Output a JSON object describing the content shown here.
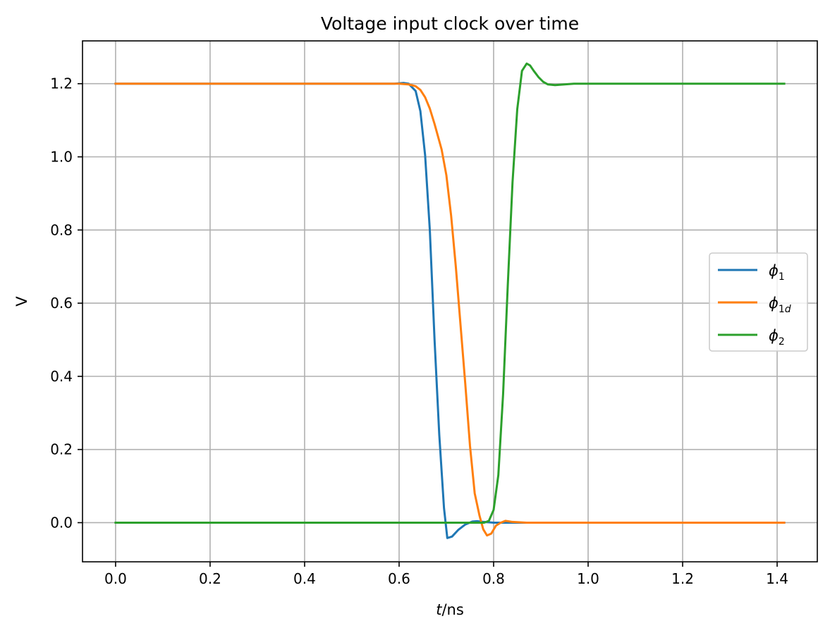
{
  "chart_data": {
    "type": "line",
    "title": "Voltage input clock over time",
    "xlabel_italic": "t",
    "xlabel_rest": "/ns",
    "ylabel": "V",
    "xlim": [
      -0.07,
      1.485
    ],
    "ylim": [
      -0.107,
      1.317
    ],
    "grid": true,
    "legend_position": "center-right",
    "x_ticks": [
      0.0,
      0.2,
      0.4,
      0.6,
      0.8,
      1.0,
      1.2,
      1.4
    ],
    "x_tick_labels": [
      "0.0",
      "0.2",
      "0.4",
      "0.6",
      "0.8",
      "1.0",
      "1.2",
      "1.4"
    ],
    "y_ticks": [
      0.0,
      0.2,
      0.4,
      0.6,
      0.8,
      1.0,
      1.2
    ],
    "y_tick_labels": [
      "0.0",
      "0.2",
      "0.4",
      "0.6",
      "0.8",
      "1.0",
      "1.2"
    ],
    "series": [
      {
        "name_main": "ϕ",
        "name_sub": "1",
        "color": "#1f77b4",
        "x": [
          0.0,
          0.59,
          0.61,
          0.62,
          0.635,
          0.645,
          0.655,
          0.665,
          0.675,
          0.685,
          0.695,
          0.702,
          0.712,
          0.725,
          0.74,
          0.755,
          0.765,
          0.78,
          0.8,
          0.83,
          1.415
        ],
        "y": [
          1.2,
          1.2,
          1.202,
          1.2,
          1.18,
          1.125,
          1.005,
          0.8,
          0.5,
          0.24,
          0.04,
          -0.042,
          -0.038,
          -0.02,
          -0.005,
          0.003,
          0.004,
          0.002,
          0.0,
          0.0,
          0.0
        ]
      },
      {
        "name_main": "ϕ",
        "name_sub": "1d",
        "color": "#ff7f0e",
        "x": [
          0.0,
          0.6,
          0.62,
          0.635,
          0.645,
          0.655,
          0.665,
          0.675,
          0.69,
          0.7,
          0.71,
          0.72,
          0.73,
          0.74,
          0.75,
          0.76,
          0.77,
          0.778,
          0.786,
          0.795,
          0.805,
          0.815,
          0.825,
          0.84,
          0.87,
          1.415
        ],
        "y": [
          1.2,
          1.2,
          1.198,
          1.193,
          1.183,
          1.163,
          1.132,
          1.09,
          1.02,
          0.95,
          0.84,
          0.7,
          0.54,
          0.38,
          0.21,
          0.08,
          0.02,
          -0.018,
          -0.035,
          -0.03,
          -0.008,
          0.0,
          0.005,
          0.002,
          0.0,
          0.0
        ]
      },
      {
        "name_main": "ϕ",
        "name_sub": "2",
        "color": "#2ca02c",
        "x": [
          0.0,
          0.78,
          0.79,
          0.8,
          0.81,
          0.82,
          0.83,
          0.84,
          0.85,
          0.86,
          0.87,
          0.877,
          0.885,
          0.895,
          0.905,
          0.915,
          0.93,
          0.95,
          0.97,
          1.0,
          1.07,
          1.415
        ],
        "y": [
          0.0,
          0.0,
          0.005,
          0.035,
          0.13,
          0.35,
          0.65,
          0.93,
          1.13,
          1.235,
          1.255,
          1.25,
          1.235,
          1.218,
          1.205,
          1.198,
          1.196,
          1.198,
          1.2,
          1.2,
          1.2,
          1.2
        ]
      }
    ]
  }
}
